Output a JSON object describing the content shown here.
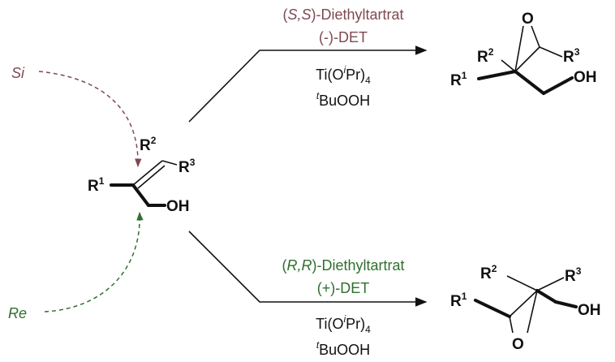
{
  "faces": {
    "si": "Si",
    "re": "Re"
  },
  "substrate": {
    "r1": {
      "base": "R",
      "sup": "1"
    },
    "r2": {
      "base": "R",
      "sup": "2"
    },
    "r3": {
      "base": "R",
      "sup": "3"
    },
    "oh": "OH"
  },
  "top_reaction": {
    "catalyst_name": {
      "open": "(",
      "config": "S,S",
      "rest": ")-Diethyltartrat"
    },
    "catalyst_abbr": "(-)-DET",
    "titanium": {
      "a": "Ti(O",
      "sup": "i",
      "b": "Pr)",
      "sub": "4"
    },
    "oxidant": {
      "sup": "t",
      "base": "BuOOH"
    },
    "product": {
      "o": "O",
      "r1": {
        "base": "R",
        "sup": "1"
      },
      "r2": {
        "base": "R",
        "sup": "2"
      },
      "r3": {
        "base": "R",
        "sup": "3"
      },
      "oh": "OH"
    }
  },
  "bottom_reaction": {
    "catalyst_name": {
      "open": "(",
      "config": "R,R",
      "rest": ")-Diethyltartrat"
    },
    "catalyst_abbr": "(+)-DET",
    "titanium": {
      "a": "Ti(O",
      "sup": "i",
      "b": "Pr)",
      "sub": "4"
    },
    "oxidant": {
      "sup": "t",
      "base": "BuOOH"
    },
    "product": {
      "o": "O",
      "r1": {
        "base": "R",
        "sup": "1"
      },
      "r2": {
        "base": "R",
        "sup": "2"
      },
      "r3": {
        "base": "R",
        "sup": "3"
      },
      "oh": "OH"
    }
  }
}
